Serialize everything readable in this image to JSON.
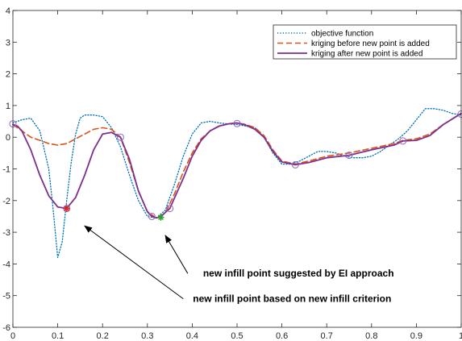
{
  "chart_data": {
    "type": "line",
    "title": "",
    "xlabel": "",
    "ylabel": "",
    "xlim": [
      0,
      1
    ],
    "ylim": [
      -6,
      4
    ],
    "xticks": [
      0,
      0.1,
      0.2,
      0.3,
      0.4,
      0.5,
      0.6,
      0.7,
      0.8,
      0.9,
      1
    ],
    "xtick_labels": [
      "0",
      "0.1",
      "0.2",
      "0.3",
      "0.4",
      "0.5",
      "0.6",
      "0.7",
      "0.8",
      "0.9",
      "1"
    ],
    "yticks": [
      -6,
      -5,
      -4,
      -3,
      -2,
      -1,
      0,
      1,
      2,
      3,
      4
    ],
    "ytick_labels": [
      "-6",
      "-5",
      "-4",
      "-3",
      "-2",
      "-1",
      "0",
      "1",
      "2",
      "3",
      "4"
    ],
    "grid": false,
    "legend_position": "top-right",
    "series": [
      {
        "name": "objective function",
        "style": "dotted",
        "color": "#0072BD",
        "x": [
          0,
          0.02,
          0.04,
          0.06,
          0.08,
          0.09,
          0.1,
          0.11,
          0.12,
          0.13,
          0.14,
          0.15,
          0.16,
          0.18,
          0.2,
          0.22,
          0.24,
          0.26,
          0.28,
          0.3,
          0.32,
          0.34,
          0.36,
          0.38,
          0.4,
          0.42,
          0.44,
          0.46,
          0.48,
          0.5,
          0.52,
          0.54,
          0.56,
          0.58,
          0.6,
          0.62,
          0.64,
          0.66,
          0.68,
          0.7,
          0.72,
          0.74,
          0.76,
          0.78,
          0.8,
          0.82,
          0.84,
          0.86,
          0.88,
          0.9,
          0.92,
          0.94,
          0.96,
          0.98,
          1
        ],
        "y": [
          0.45,
          0.55,
          0.6,
          0.2,
          -1.0,
          -2.3,
          -3.8,
          -3.3,
          -2.0,
          -0.8,
          0.1,
          0.6,
          0.7,
          0.7,
          0.65,
          0.3,
          -0.3,
          -1.2,
          -2.0,
          -2.5,
          -2.55,
          -2.3,
          -1.5,
          -0.6,
          0.1,
          0.45,
          0.5,
          0.45,
          0.42,
          0.4,
          0.35,
          0.3,
          0.0,
          -0.5,
          -0.85,
          -0.85,
          -0.75,
          -0.6,
          -0.45,
          -0.45,
          -0.5,
          -0.6,
          -0.65,
          -0.65,
          -0.6,
          -0.45,
          -0.25,
          -0.05,
          0.2,
          0.55,
          0.9,
          0.9,
          0.85,
          0.75,
          0.7
        ]
      },
      {
        "name": "kriging before new point is added",
        "style": "dashed",
        "color": "#D95319",
        "x": [
          0,
          0.02,
          0.04,
          0.06,
          0.08,
          0.1,
          0.12,
          0.14,
          0.16,
          0.18,
          0.2,
          0.22,
          0.24,
          0.26,
          0.28,
          0.3,
          0.32,
          0.34,
          0.36,
          0.38,
          0.4,
          0.42,
          0.44,
          0.46,
          0.48,
          0.5,
          0.52,
          0.54,
          0.56,
          0.58,
          0.6,
          0.63,
          0.66,
          0.7,
          0.75,
          0.8,
          0.85,
          0.87,
          0.9,
          0.93,
          0.96,
          1
        ],
        "y": [
          0.4,
          0.2,
          0.0,
          -0.1,
          -0.2,
          -0.25,
          -0.2,
          -0.05,
          0.1,
          0.25,
          0.3,
          0.25,
          0.0,
          -0.8,
          -1.7,
          -2.35,
          -2.55,
          -2.4,
          -1.8,
          -1.1,
          -0.5,
          -0.05,
          0.2,
          0.35,
          0.42,
          0.45,
          0.4,
          0.3,
          0.05,
          -0.4,
          -0.75,
          -0.85,
          -0.75,
          -0.6,
          -0.5,
          -0.35,
          -0.2,
          -0.1,
          -0.05,
          0.1,
          0.4,
          0.75
        ]
      },
      {
        "name": "kriging after new point is added",
        "style": "solid",
        "color": "#7E2F8E",
        "x": [
          0,
          0.01,
          0.02,
          0.04,
          0.06,
          0.08,
          0.1,
          0.12,
          0.14,
          0.16,
          0.18,
          0.2,
          0.22,
          0.24,
          0.26,
          0.28,
          0.3,
          0.31,
          0.32,
          0.33,
          0.35,
          0.38,
          0.4,
          0.42,
          0.44,
          0.46,
          0.48,
          0.5,
          0.52,
          0.54,
          0.56,
          0.58,
          0.6,
          0.63,
          0.66,
          0.7,
          0.75,
          0.8,
          0.85,
          0.87,
          0.9,
          0.93,
          0.96,
          1
        ],
        "y": [
          0.4,
          0.35,
          0.2,
          -0.4,
          -1.2,
          -1.85,
          -2.2,
          -2.25,
          -1.9,
          -1.2,
          -0.4,
          0.1,
          0.15,
          0.0,
          -0.7,
          -1.7,
          -2.35,
          -2.5,
          -2.55,
          -2.5,
          -2.25,
          -1.3,
          -0.6,
          -0.1,
          0.2,
          0.35,
          0.42,
          0.45,
          0.38,
          0.25,
          0.0,
          -0.45,
          -0.78,
          -0.87,
          -0.8,
          -0.65,
          -0.57,
          -0.4,
          -0.25,
          -0.12,
          -0.1,
          0.05,
          0.4,
          0.75
        ]
      }
    ],
    "sample_points": {
      "color": "#9467BD",
      "x": [
        0,
        0.12,
        0.24,
        0.31,
        0.35,
        0.5,
        0.63,
        0.75,
        0.87,
        1
      ],
      "y": [
        0.42,
        -2.25,
        0.0,
        -2.5,
        -2.25,
        0.43,
        -0.87,
        -0.57,
        -0.12,
        0.73
      ]
    },
    "markers": [
      {
        "label": "EI point",
        "x": 0.12,
        "y": -2.25,
        "symbol": "star",
        "color": "#D62728"
      },
      {
        "label": "new criterion point",
        "x": 0.33,
        "y": -2.53,
        "symbol": "star",
        "color": "#2CA02C"
      }
    ],
    "annotations": [
      {
        "text": "new infill point suggested by EI approach",
        "arrow_from": [
          0.39,
          -4.3
        ],
        "arrow_to": [
          0.34,
          -3.1
        ]
      },
      {
        "text": "new infill point based on new infill criterion",
        "arrow_from": [
          0.38,
          -5.1
        ],
        "arrow_to": [
          0.16,
          -2.8
        ]
      }
    ]
  }
}
